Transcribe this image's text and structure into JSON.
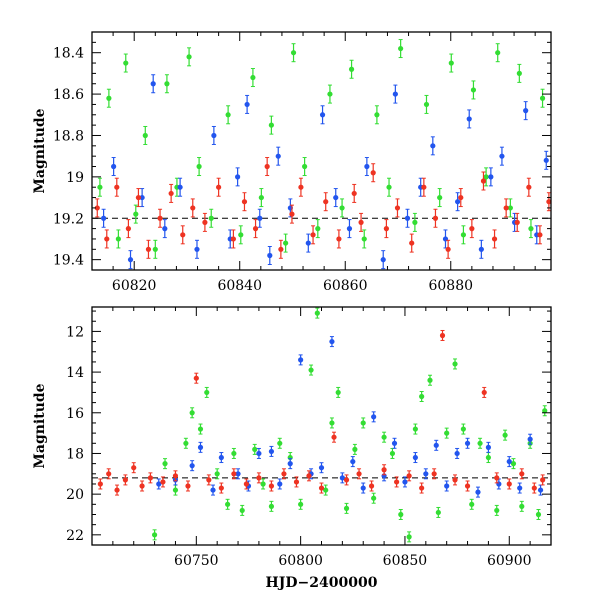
{
  "chart_data": [
    {
      "type": "scatter",
      "panel": "top",
      "title": "",
      "xlabel": "",
      "ylabel": "Magnitude",
      "xlim": [
        60812,
        60899
      ],
      "ylim": [
        18.3,
        19.45
      ],
      "y_inverted": true,
      "xticks": [
        60820,
        60840,
        60860,
        60880
      ],
      "yticks": [
        18.4,
        18.6,
        18.8,
        19,
        19.2,
        19.4
      ],
      "grid": false,
      "legend": "none",
      "reference_line": {
        "y": 19.2,
        "style": "dashed"
      },
      "series": [
        {
          "color": "#33dd33",
          "points": [
            [
              60813.5,
              19.05
            ],
            [
              60815.2,
              18.62
            ],
            [
              60817.0,
              19.3
            ],
            [
              60818.4,
              18.45
            ],
            [
              60820.3,
              19.18
            ],
            [
              60822.1,
              18.8
            ],
            [
              60824.0,
              19.35
            ],
            [
              60826.2,
              18.55
            ],
            [
              60828.1,
              19.05
            ],
            [
              60830.4,
              18.42
            ],
            [
              60832.3,
              18.95
            ],
            [
              60834.6,
              19.2
            ],
            [
              60837.8,
              18.7
            ],
            [
              60840.2,
              19.28
            ],
            [
              60842.5,
              18.52
            ],
            [
              60844.1,
              19.1
            ],
            [
              60846.0,
              18.75
            ],
            [
              60848.7,
              19.32
            ],
            [
              60850.2,
              18.4
            ],
            [
              60852.3,
              18.95
            ],
            [
              60854.8,
              19.25
            ],
            [
              60857.1,
              18.6
            ],
            [
              60859.4,
              19.15
            ],
            [
              60861.2,
              18.48
            ],
            [
              60863.6,
              19.3
            ],
            [
              60866.0,
              18.7
            ],
            [
              60868.3,
              19.05
            ],
            [
              60870.5,
              18.38
            ],
            [
              60873.2,
              19.22
            ],
            [
              60875.4,
              18.65
            ],
            [
              60877.9,
              19.1
            ],
            [
              60880.1,
              18.45
            ],
            [
              60882.4,
              19.28
            ],
            [
              60884.3,
              18.58
            ],
            [
              60886.7,
              19.0
            ],
            [
              60888.9,
              18.4
            ],
            [
              60891.3,
              19.15
            ],
            [
              60893.0,
              18.5
            ],
            [
              60895.2,
              19.25
            ],
            [
              60897.4,
              18.62
            ]
          ]
        },
        {
          "color": "#2255ee",
          "points": [
            [
              60814.2,
              19.2
            ],
            [
              60816.1,
              18.95
            ],
            [
              60819.3,
              19.4
            ],
            [
              60821.5,
              19.1
            ],
            [
              60823.6,
              18.55
            ],
            [
              60825.8,
              19.25
            ],
            [
              60828.7,
              19.05
            ],
            [
              60831.9,
              19.35
            ],
            [
              60835.1,
              18.8
            ],
            [
              60838.2,
              19.3
            ],
            [
              60839.6,
              19.0
            ],
            [
              60841.4,
              18.65
            ],
            [
              60843.8,
              19.2
            ],
            [
              60845.7,
              19.38
            ],
            [
              60847.3,
              18.9
            ],
            [
              60849.6,
              19.15
            ],
            [
              60853.0,
              19.32
            ],
            [
              60855.7,
              18.7
            ],
            [
              60858.2,
              19.1
            ],
            [
              60860.8,
              19.25
            ],
            [
              60864.1,
              18.95
            ],
            [
              60867.2,
              19.4
            ],
            [
              60869.5,
              18.6
            ],
            [
              60871.8,
              19.2
            ],
            [
              60874.3,
              19.05
            ],
            [
              60876.6,
              18.85
            ],
            [
              60879.0,
              19.3
            ],
            [
              60881.3,
              19.12
            ],
            [
              60883.5,
              18.72
            ],
            [
              60885.8,
              19.35
            ],
            [
              60887.6,
              19.0
            ],
            [
              60889.7,
              18.9
            ],
            [
              60892.1,
              19.22
            ],
            [
              60894.2,
              18.68
            ],
            [
              60896.3,
              19.28
            ],
            [
              60898.1,
              18.92
            ]
          ]
        },
        {
          "color": "#ee3322",
          "points": [
            [
              60813.0,
              19.15
            ],
            [
              60814.8,
              19.3
            ],
            [
              60816.7,
              19.05
            ],
            [
              60818.9,
              19.25
            ],
            [
              60820.8,
              19.1
            ],
            [
              60822.7,
              19.35
            ],
            [
              60824.9,
              19.2
            ],
            [
              60827.0,
              19.08
            ],
            [
              60829.2,
              19.28
            ],
            [
              60831.1,
              19.15
            ],
            [
              60833.4,
              19.22
            ],
            [
              60836.0,
              19.05
            ],
            [
              60838.8,
              19.3
            ],
            [
              60840.9,
              19.12
            ],
            [
              60843.0,
              19.25
            ],
            [
              60845.2,
              18.95
            ],
            [
              60847.8,
              19.35
            ],
            [
              60849.9,
              19.18
            ],
            [
              60851.6,
              19.05
            ],
            [
              60853.9,
              19.28
            ],
            [
              60856.3,
              19.12
            ],
            [
              60858.8,
              19.3
            ],
            [
              60861.7,
              19.08
            ],
            [
              60863.0,
              19.22
            ],
            [
              60865.3,
              18.98
            ],
            [
              60867.8,
              19.25
            ],
            [
              60869.9,
              19.15
            ],
            [
              60872.6,
              19.32
            ],
            [
              60874.9,
              19.05
            ],
            [
              60877.1,
              19.2
            ],
            [
              60879.5,
              19.35
            ],
            [
              60881.9,
              19.1
            ],
            [
              60884.0,
              19.25
            ],
            [
              60886.2,
              19.02
            ],
            [
              60888.3,
              19.3
            ],
            [
              60890.5,
              19.15
            ],
            [
              60892.6,
              19.22
            ],
            [
              60894.8,
              19.05
            ],
            [
              60896.9,
              19.28
            ],
            [
              60898.6,
              19.12
            ]
          ]
        }
      ]
    },
    {
      "type": "scatter",
      "panel": "bottom",
      "title": "",
      "xlabel": "HJD−2400000",
      "ylabel": "Magnitude",
      "xlim": [
        60700,
        60920
      ],
      "ylim": [
        10.8,
        22.5
      ],
      "y_inverted": true,
      "xticks": [
        60750,
        60800,
        60850,
        60900
      ],
      "yticks": [
        12,
        14,
        16,
        18,
        20,
        22
      ],
      "grid": false,
      "legend": "none",
      "reference_line": {
        "y": 19.2,
        "style": "dashed"
      },
      "series": [
        {
          "color": "#33dd33",
          "points": [
            [
              60730,
              22.0
            ],
            [
              60735,
              18.5
            ],
            [
              60740,
              19.8
            ],
            [
              60745,
              17.5
            ],
            [
              60748,
              16.0
            ],
            [
              60752,
              16.8
            ],
            [
              60755,
              15.0
            ],
            [
              60760,
              19.0
            ],
            [
              60765,
              20.5
            ],
            [
              60768,
              18.0
            ],
            [
              60772,
              20.8
            ],
            [
              60778,
              17.8
            ],
            [
              60782,
              19.5
            ],
            [
              60786,
              20.6
            ],
            [
              60790,
              17.5
            ],
            [
              60795,
              18.2
            ],
            [
              60800,
              20.5
            ],
            [
              60805,
              13.9
            ],
            [
              60808,
              11.1
            ],
            [
              60812,
              19.8
            ],
            [
              60815,
              16.5
            ],
            [
              60818,
              15.0
            ],
            [
              60822,
              20.7
            ],
            [
              60826,
              17.8
            ],
            [
              60830,
              16.5
            ],
            [
              60835,
              20.2
            ],
            [
              60840,
              17.2
            ],
            [
              60844,
              18.0
            ],
            [
              60848,
              21.0
            ],
            [
              60852,
              22.1
            ],
            [
              60855,
              16.8
            ],
            [
              60858,
              15.2
            ],
            [
              60862,
              14.4
            ],
            [
              60866,
              20.9
            ],
            [
              60870,
              17.0
            ],
            [
              60874,
              13.6
            ],
            [
              60878,
              16.8
            ],
            [
              60882,
              20.5
            ],
            [
              60886,
              17.5
            ],
            [
              60890,
              18.2
            ],
            [
              60894,
              20.8
            ],
            [
              60898,
              17.1
            ],
            [
              60902,
              18.5
            ],
            [
              60906,
              20.6
            ],
            [
              60910,
              17.5
            ],
            [
              60914,
              21.0
            ],
            [
              60917,
              15.9
            ]
          ]
        },
        {
          "color": "#2255ee",
          "points": [
            [
              60732,
              19.5
            ],
            [
              60740,
              19.3
            ],
            [
              60748,
              18.6
            ],
            [
              60752,
              17.7
            ],
            [
              60758,
              19.8
            ],
            [
              60762,
              18.2
            ],
            [
              60770,
              19.0
            ],
            [
              60775,
              19.6
            ],
            [
              60780,
              18.0
            ],
            [
              60786,
              17.9
            ],
            [
              60790,
              19.5
            ],
            [
              60795,
              18.5
            ],
            [
              60800,
              13.4
            ],
            [
              60805,
              19.0
            ],
            [
              60810,
              18.7
            ],
            [
              60815,
              12.5
            ],
            [
              60820,
              19.2
            ],
            [
              60825,
              18.4
            ],
            [
              60830,
              19.7
            ],
            [
              60835,
              16.2
            ],
            [
              60840,
              19.1
            ],
            [
              60845,
              17.5
            ],
            [
              60850,
              19.4
            ],
            [
              60855,
              18.2
            ],
            [
              60860,
              19.0
            ],
            [
              60865,
              17.6
            ],
            [
              60870,
              19.6
            ],
            [
              60875,
              18.0
            ],
            [
              60880,
              17.5
            ],
            [
              60885,
              19.9
            ],
            [
              60890,
              17.7
            ],
            [
              60895,
              19.5
            ],
            [
              60900,
              18.4
            ],
            [
              60905,
              19.7
            ],
            [
              60910,
              17.3
            ],
            [
              60915,
              19.8
            ]
          ]
        },
        {
          "color": "#ee3322",
          "points": [
            [
              60704,
              19.5
            ],
            [
              60708,
              19.0
            ],
            [
              60712,
              19.8
            ],
            [
              60716,
              19.3
            ],
            [
              60720,
              18.7
            ],
            [
              60724,
              19.6
            ],
            [
              60728,
              19.2
            ],
            [
              60734,
              19.4
            ],
            [
              60740,
              19.1
            ],
            [
              60746,
              19.6
            ],
            [
              60750,
              14.3
            ],
            [
              60756,
              19.3
            ],
            [
              60762,
              19.7
            ],
            [
              60768,
              19.0
            ],
            [
              60774,
              19.5
            ],
            [
              60780,
              19.2
            ],
            [
              60786,
              19.6
            ],
            [
              60792,
              19.0
            ],
            [
              60798,
              19.4
            ],
            [
              60804,
              19.1
            ],
            [
              60810,
              19.7
            ],
            [
              60816,
              17.2
            ],
            [
              60822,
              19.3
            ],
            [
              60828,
              19.0
            ],
            [
              60834,
              19.6
            ],
            [
              60840,
              18.8
            ],
            [
              60846,
              19.4
            ],
            [
              60852,
              19.1
            ],
            [
              60858,
              19.7
            ],
            [
              60864,
              19.0
            ],
            [
              60868,
              12.2
            ],
            [
              60874,
              19.3
            ],
            [
              60880,
              19.6
            ],
            [
              60888,
              15.0
            ],
            [
              60894,
              19.2
            ],
            [
              60900,
              19.5
            ],
            [
              60906,
              19.0
            ],
            [
              60912,
              19.7
            ],
            [
              60916,
              19.3
            ]
          ]
        }
      ]
    }
  ]
}
